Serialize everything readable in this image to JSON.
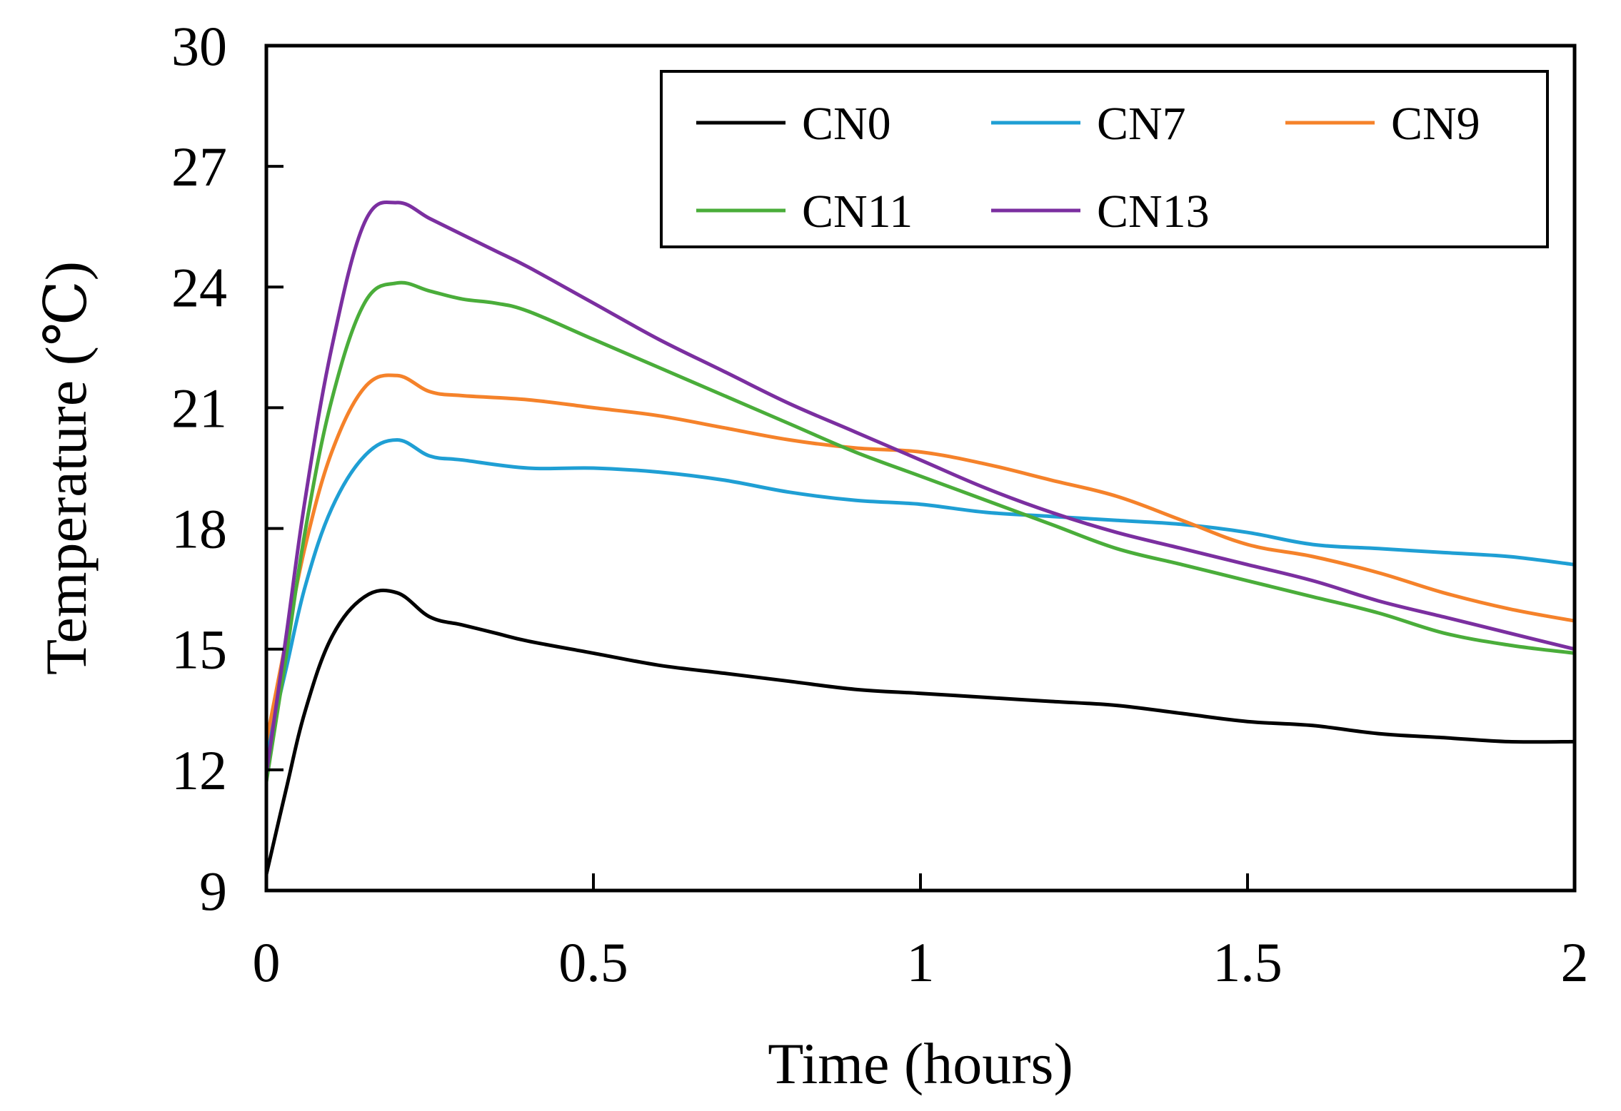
{
  "chart_data": {
    "type": "line",
    "title": "",
    "xlabel": "Time (hours)",
    "ylabel": "Temperature (℃)",
    "xlim": [
      0,
      2
    ],
    "ylim": [
      9,
      30
    ],
    "xticks": [
      0,
      0.5,
      1,
      1.5,
      2
    ],
    "xtick_labels": [
      "0",
      "0.5",
      "1",
      "1.5",
      "2"
    ],
    "yticks": [
      9,
      12,
      15,
      18,
      21,
      24,
      27,
      30
    ],
    "ytick_labels": [
      "9",
      "12",
      "15",
      "18",
      "21",
      "24",
      "27",
      "30"
    ],
    "grid": false,
    "legend_position": "top-right",
    "series": [
      {
        "name": "CN0",
        "color": "#000000",
        "x": [
          0,
          0.03,
          0.06,
          0.1,
          0.15,
          0.2,
          0.25,
          0.3,
          0.35,
          0.4,
          0.5,
          0.6,
          0.7,
          0.8,
          0.9,
          1.0,
          1.1,
          1.2,
          1.3,
          1.4,
          1.5,
          1.6,
          1.7,
          1.8,
          1.9,
          2.0
        ],
        "y": [
          9.4,
          11.5,
          13.5,
          15.3,
          16.3,
          16.4,
          15.8,
          15.6,
          15.4,
          15.2,
          14.9,
          14.6,
          14.4,
          14.2,
          14.0,
          13.9,
          13.8,
          13.7,
          13.6,
          13.4,
          13.2,
          13.1,
          12.9,
          12.8,
          12.7,
          12.7
        ]
      },
      {
        "name": "CN7",
        "color": "#1f9fd4",
        "x": [
          0,
          0.03,
          0.06,
          0.1,
          0.15,
          0.2,
          0.25,
          0.3,
          0.4,
          0.5,
          0.6,
          0.7,
          0.8,
          0.9,
          1.0,
          1.1,
          1.2,
          1.3,
          1.4,
          1.5,
          1.6,
          1.7,
          1.8,
          1.9,
          2.0
        ],
        "y": [
          12.4,
          14.5,
          16.6,
          18.5,
          19.8,
          20.2,
          19.8,
          19.7,
          19.5,
          19.5,
          19.4,
          19.2,
          18.9,
          18.7,
          18.6,
          18.4,
          18.3,
          18.2,
          18.1,
          17.9,
          17.6,
          17.5,
          17.4,
          17.3,
          17.1
        ]
      },
      {
        "name": "CN9",
        "color": "#f5822a",
        "x": [
          0,
          0.03,
          0.06,
          0.1,
          0.15,
          0.2,
          0.25,
          0.3,
          0.4,
          0.5,
          0.6,
          0.7,
          0.8,
          0.9,
          1.0,
          1.1,
          1.2,
          1.3,
          1.4,
          1.5,
          1.6,
          1.7,
          1.8,
          1.9,
          2.0
        ],
        "y": [
          12.7,
          15.2,
          17.6,
          19.9,
          21.5,
          21.8,
          21.4,
          21.3,
          21.2,
          21.0,
          20.8,
          20.5,
          20.2,
          20.0,
          19.9,
          19.6,
          19.2,
          18.8,
          18.2,
          17.6,
          17.3,
          16.9,
          16.4,
          16.0,
          15.7
        ]
      },
      {
        "name": "CN11",
        "color": "#4aad3a",
        "x": [
          0,
          0.03,
          0.06,
          0.1,
          0.15,
          0.2,
          0.25,
          0.3,
          0.35,
          0.4,
          0.5,
          0.6,
          0.7,
          0.8,
          0.9,
          1.0,
          1.1,
          1.2,
          1.3,
          1.4,
          1.5,
          1.6,
          1.7,
          1.8,
          1.9,
          2.0
        ],
        "y": [
          11.7,
          14.8,
          18.0,
          21.2,
          23.6,
          24.1,
          23.9,
          23.7,
          23.6,
          23.4,
          22.7,
          22.0,
          21.3,
          20.6,
          19.9,
          19.3,
          18.7,
          18.1,
          17.5,
          17.1,
          16.7,
          16.3,
          15.9,
          15.4,
          15.1,
          14.9
        ]
      },
      {
        "name": "CN13",
        "color": "#7b2fa0",
        "x": [
          0,
          0.03,
          0.06,
          0.1,
          0.15,
          0.2,
          0.25,
          0.3,
          0.35,
          0.4,
          0.5,
          0.6,
          0.7,
          0.8,
          0.9,
          1.0,
          1.1,
          1.2,
          1.3,
          1.4,
          1.5,
          1.6,
          1.7,
          1.8,
          1.9,
          2.0
        ],
        "y": [
          11.9,
          15.3,
          18.8,
          22.5,
          25.6,
          26.1,
          25.7,
          25.3,
          24.9,
          24.5,
          23.6,
          22.7,
          21.9,
          21.1,
          20.4,
          19.7,
          19.0,
          18.4,
          17.9,
          17.5,
          17.1,
          16.7,
          16.2,
          15.8,
          15.4,
          15.0
        ]
      }
    ]
  }
}
